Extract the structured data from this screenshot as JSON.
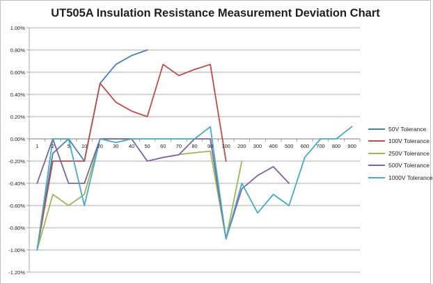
{
  "chart_data": {
    "type": "line",
    "title": "UT505A Insulation Resistance Measurement Deviation Chart",
    "xlabel": "",
    "ylabel": "",
    "categories": [
      "1",
      "2",
      "5",
      "10",
      "20",
      "30",
      "40",
      "50",
      "60",
      "70",
      "80",
      "90",
      "100",
      "200",
      "300",
      "400",
      "500",
      "600",
      "700",
      "800",
      "900"
    ],
    "ylim": [
      -1.2,
      1.0
    ],
    "yticks": [
      1.0,
      0.8,
      0.6,
      0.4,
      0.2,
      0.0,
      -0.2,
      -0.4,
      -0.6,
      -0.8,
      -1.0,
      -1.2
    ],
    "ytick_labels": [
      "1.00%",
      "0.80%",
      "0.60%",
      "0.40%",
      "0.20%",
      "0.00%",
      "-0.20%",
      "-0.40%",
      "-0.60%",
      "-0.80%",
      "-1.00%",
      "-1.20%"
    ],
    "grid": true,
    "legend": "right",
    "series": [
      {
        "name": "50V Tolerance",
        "color": "#4a7ebb",
        "values": [
          -1.0,
          -0.13,
          0.0,
          -0.2,
          0.5,
          0.67,
          0.75,
          0.8,
          null,
          null,
          null,
          null,
          null,
          null,
          null,
          null,
          null,
          null,
          null,
          null,
          null
        ]
      },
      {
        "name": "100V Tolerance",
        "color": "#be4b48",
        "values": [
          -1.0,
          -0.2,
          -0.2,
          -0.2,
          0.5,
          0.33,
          0.25,
          0.2,
          0.67,
          0.57,
          0.625,
          0.67,
          -0.2,
          null,
          null,
          null,
          null,
          null,
          null,
          null,
          null
        ]
      },
      {
        "name": "250V Tolerance",
        "color": "#98b954",
        "values": [
          -1.0,
          -0.5,
          -0.6,
          -0.5,
          0.0,
          0.0,
          0.0,
          null,
          null,
          -0.14,
          -0.125,
          -0.11,
          -0.9,
          -0.2,
          null,
          null,
          null,
          null,
          null,
          null,
          null
        ]
      },
      {
        "name": "500V Tolerance",
        "color": "#7d60a0",
        "values": [
          -0.4,
          0.0,
          -0.4,
          -0.4,
          0.0,
          0.0,
          0.0,
          -0.2,
          -0.167,
          -0.143,
          0.0,
          0.0,
          -0.9,
          -0.45,
          -0.33,
          -0.25,
          -0.4,
          null,
          null,
          null,
          null
        ]
      },
      {
        "name": "1000V Tolerance",
        "color": "#46aac5",
        "values": [
          -1.0,
          0.0,
          0.0,
          -0.6,
          0.0,
          -0.033,
          0.0,
          0.0,
          0.0,
          0.0,
          0.0,
          0.11,
          -0.9,
          -0.4,
          -0.667,
          -0.5,
          -0.6,
          -0.167,
          0.0,
          0.0,
          0.111
        ]
      }
    ]
  }
}
